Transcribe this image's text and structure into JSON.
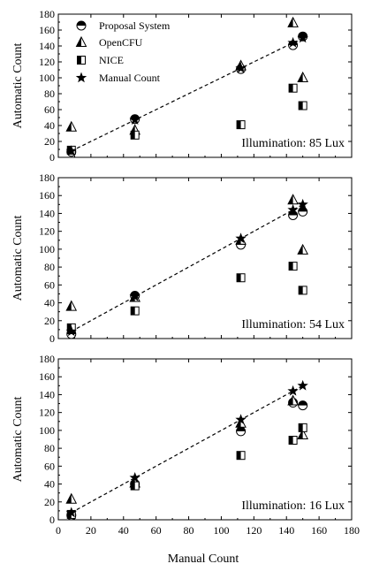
{
  "chart_data": {
    "type": "scatter",
    "xlabel": "Manual Count",
    "ylabel": "Automatic Count",
    "xlim": [
      0,
      180
    ],
    "ylim": [
      0,
      180
    ],
    "xticks": [
      "0",
      "20",
      "40",
      "60",
      "80",
      "100",
      "120",
      "140",
      "160",
      "180"
    ],
    "yticks": [
      "0",
      "20",
      "40",
      "60",
      "80",
      "100",
      "120",
      "140",
      "160",
      "180"
    ],
    "grid": false,
    "legend_position": "top-left",
    "legend": [
      {
        "name": "Proposal System",
        "marker": "half-circle"
      },
      {
        "name": "OpenCFU",
        "marker": "half-triangle"
      },
      {
        "name": "NICE",
        "marker": "half-square"
      },
      {
        "name": "Manual Count",
        "marker": "star"
      }
    ],
    "reference_line": {
      "style": "dashed",
      "x": [
        8,
        150
      ],
      "y": [
        8,
        150
      ]
    },
    "panels": [
      {
        "annotation": "Illumination: 85 Lux",
        "series": [
          {
            "name": "Proposal System",
            "x": [
              8,
              47,
              112,
              144,
              150
            ],
            "y": [
              7,
              48,
              111,
              141,
              152
            ]
          },
          {
            "name": "OpenCFU",
            "x": [
              8,
              47,
              112,
              144,
              150
            ],
            "y": [
              38,
              34,
              115,
              169,
              100
            ]
          },
          {
            "name": "NICE",
            "x": [
              8,
              47,
              112,
              144,
              150
            ],
            "y": [
              9,
              28,
              41,
              87,
              65
            ]
          },
          {
            "name": "Manual Count",
            "x": [
              8,
              47,
              112,
              144,
              150
            ],
            "y": [
              8,
              47,
              112,
              144,
              150
            ]
          }
        ]
      },
      {
        "annotation": "Illumination: 54 Lux",
        "series": [
          {
            "name": "Proposal System",
            "x": [
              8,
              47,
              112,
              144,
              150
            ],
            "y": [
              5,
              48,
              105,
              138,
              142
            ]
          },
          {
            "name": "OpenCFU",
            "x": [
              8,
              47,
              112,
              144,
              150
            ],
            "y": [
              36,
              46,
              110,
              155,
              99
            ]
          },
          {
            "name": "NICE",
            "x": [
              8,
              47,
              112,
              144,
              150
            ],
            "y": [
              12,
              31,
              68,
              81,
              54
            ]
          },
          {
            "name": "Manual Count",
            "x": [
              8,
              47,
              112,
              144,
              150
            ],
            "y": [
              8,
              47,
              112,
              144,
              150
            ]
          }
        ]
      },
      {
        "annotation": "Illumination: 16 Lux",
        "series": [
          {
            "name": "Proposal System",
            "x": [
              8,
              47,
              112,
              144,
              150
            ],
            "y": [
              5,
              40,
              99,
              131,
              128
            ]
          },
          {
            "name": "OpenCFU",
            "x": [
              8,
              47,
              112,
              144,
              150
            ],
            "y": [
              23,
              41,
              108,
              133,
              95
            ]
          },
          {
            "name": "NICE",
            "x": [
              8,
              47,
              112,
              144,
              150
            ],
            "y": [
              6,
              38,
              72,
              89,
              103
            ]
          },
          {
            "name": "Manual Count",
            "x": [
              8,
              47,
              112,
              144,
              150
            ],
            "y": [
              8,
              47,
              112,
              144,
              150
            ]
          }
        ]
      }
    ]
  }
}
